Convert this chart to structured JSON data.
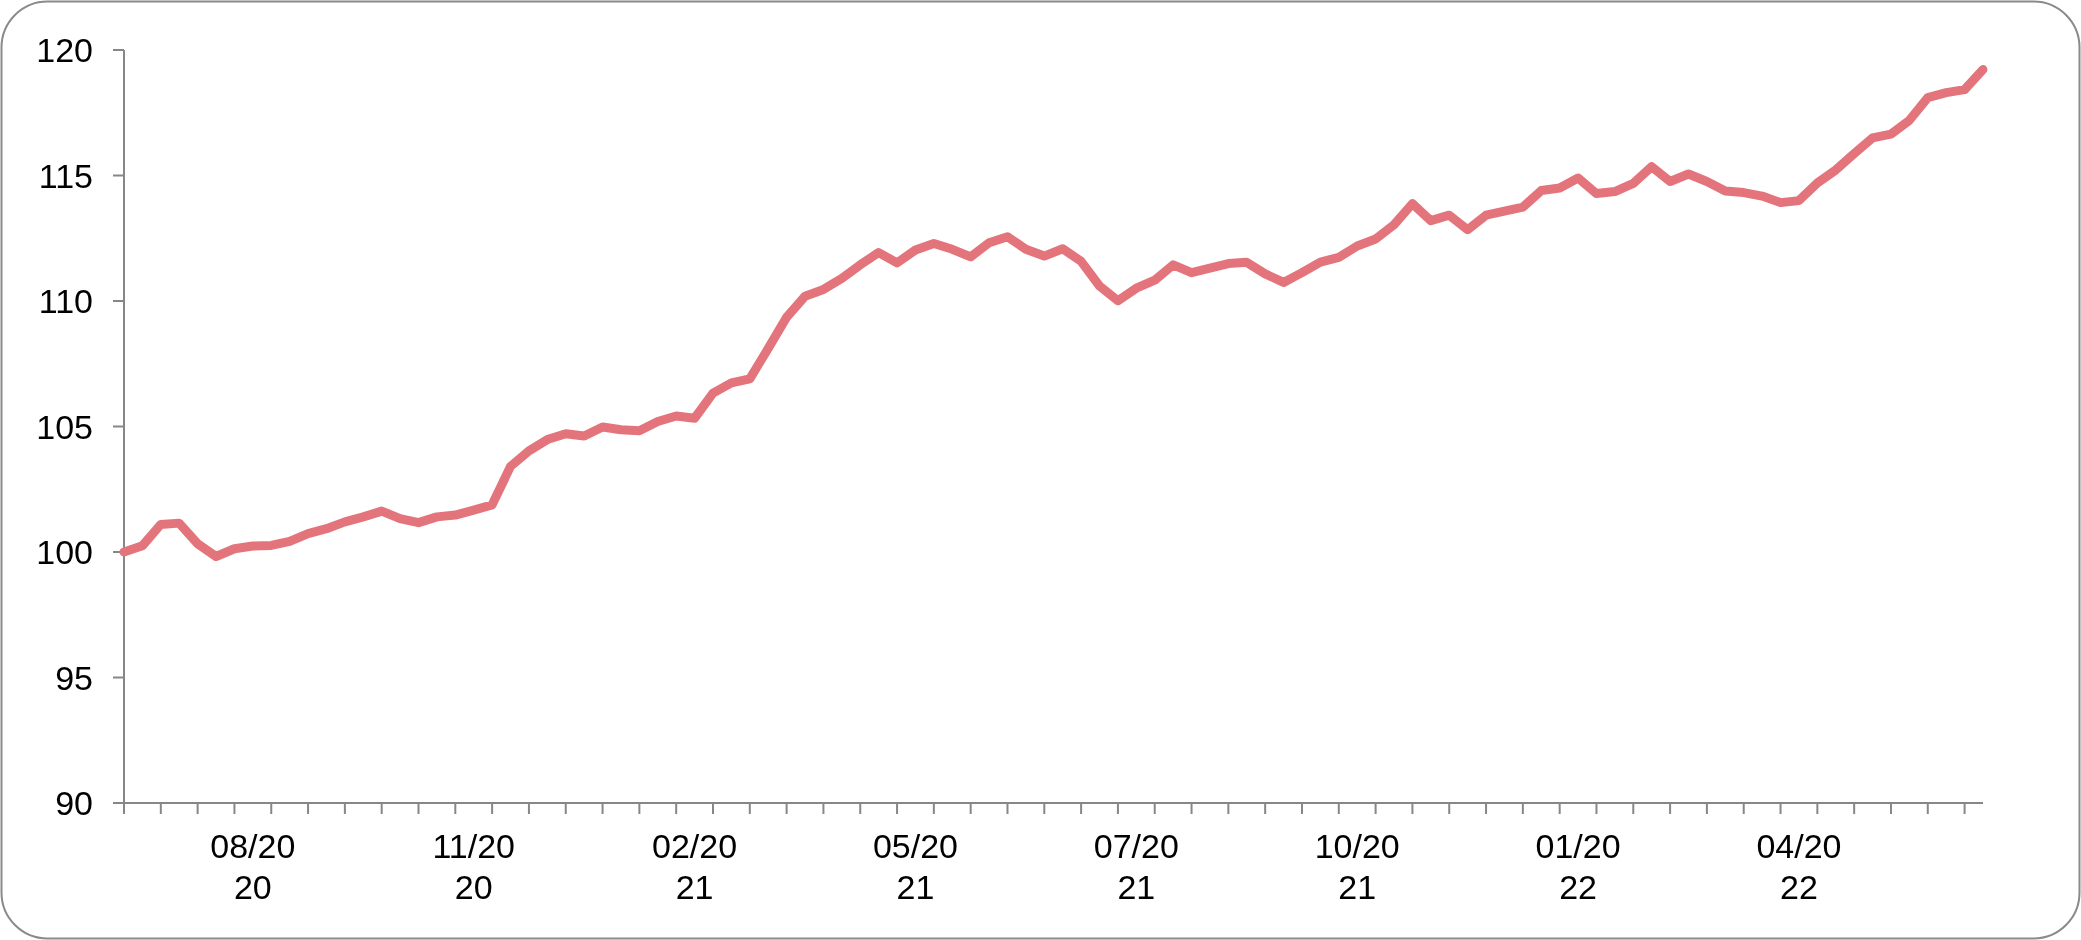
{
  "chart_data": {
    "type": "line",
    "categories": [
      null,
      null,
      null,
      null,
      null,
      null,
      null,
      "08/2020",
      null,
      null,
      null,
      null,
      null,
      null,
      null,
      null,
      null,
      null,
      null,
      "11/2020",
      null,
      null,
      null,
      null,
      null,
      null,
      null,
      null,
      null,
      null,
      null,
      "02/2021",
      null,
      null,
      null,
      null,
      null,
      null,
      null,
      null,
      null,
      null,
      null,
      "05/2021",
      null,
      null,
      null,
      null,
      null,
      null,
      null,
      null,
      null,
      null,
      null,
      "07/2021",
      null,
      null,
      null,
      null,
      null,
      null,
      null,
      null,
      null,
      null,
      null,
      "10/2021",
      null,
      null,
      null,
      null,
      null,
      null,
      null,
      null,
      null,
      null,
      null,
      "01/2022",
      null,
      null,
      null,
      null,
      null,
      null,
      null,
      null,
      null,
      null,
      null,
      "04/2022",
      null,
      null,
      null,
      null,
      null,
      null,
      null,
      null,
      null,
      null
    ],
    "series": [
      {
        "color": "#e4747b",
        "values": [
          100.0,
          100.25,
          101.1,
          101.15,
          100.33,
          99.82,
          100.13,
          100.24,
          100.26,
          100.42,
          100.73,
          100.93,
          101.2,
          101.4,
          101.63,
          101.33,
          101.17,
          101.4,
          101.47,
          101.67,
          101.88,
          103.41,
          104.03,
          104.48,
          104.71,
          104.62,
          104.98,
          104.87,
          104.83,
          105.2,
          105.42,
          105.33,
          106.33,
          106.74,
          106.9,
          108.11,
          109.35,
          110.19,
          110.46,
          110.9,
          111.44,
          111.93,
          111.52,
          112.03,
          112.29,
          112.06,
          111.76,
          112.32,
          112.56,
          112.06,
          111.79,
          112.08,
          111.58,
          110.6,
          110.01,
          110.51,
          110.83,
          111.44,
          111.13,
          111.31,
          111.49,
          111.54,
          111.08,
          110.74,
          111.13,
          111.55,
          111.74,
          112.19,
          112.47,
          113.04,
          113.88,
          113.2,
          113.42,
          112.84,
          113.42,
          113.58,
          113.74,
          114.4,
          114.5,
          114.9,
          114.28,
          114.36,
          114.69,
          115.35,
          114.76,
          115.06,
          114.76,
          114.38,
          114.32,
          114.18,
          113.92,
          114.0,
          114.7,
          115.22,
          115.87,
          116.5,
          116.65,
          117.2,
          118.1,
          118.3,
          118.42,
          119.22
        ]
      }
    ],
    "ylim": [
      90,
      120
    ],
    "yticks": [
      90,
      95,
      100,
      105,
      110,
      115,
      120
    ]
  }
}
